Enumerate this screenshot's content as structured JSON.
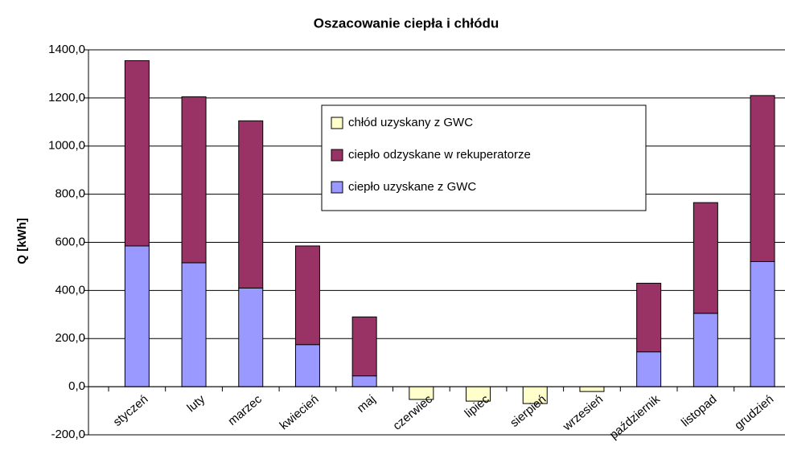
{
  "chart_data": {
    "type": "stacked_bar",
    "title": "Oszacowanie ciepła i chłódu",
    "y_label": "Q [kWh]",
    "categories": [
      "styczeń",
      "luty",
      "marzec",
      "kwiecień",
      "maj",
      "czerwiec",
      "lipiec",
      "sierpień",
      "wrzesień",
      "październik",
      "listopad",
      "grudzień"
    ],
    "series": [
      {
        "name": "chłód uzyskany z GWC",
        "color": "#ffffcc",
        "values": [
          null,
          null,
          null,
          null,
          null,
          -53,
          -60,
          -70,
          -20,
          null,
          null,
          null
        ]
      },
      {
        "name": "ciepło odzyskane w rekuperatorze",
        "color": "#993366",
        "values": [
          770,
          690,
          695,
          410,
          245,
          null,
          null,
          null,
          null,
          285,
          460,
          690
        ]
      },
      {
        "name": "ciepło uzyskane z GWC",
        "color": "#9999ff",
        "values": [
          585,
          515,
          410,
          175,
          45,
          null,
          null,
          null,
          null,
          145,
          305,
          520
        ]
      }
    ],
    "ylim": [
      -200,
      1400
    ],
    "yticks": [
      {
        "value": -200,
        "label": "-200,0"
      },
      {
        "value": 0,
        "label": "0,0"
      },
      {
        "value": 200,
        "label": "200,0"
      },
      {
        "value": 400,
        "label": "400,0"
      },
      {
        "value": 600,
        "label": "600,0"
      },
      {
        "value": 800,
        "label": "800,0"
      },
      {
        "value": 1000,
        "label": "1000,0"
      },
      {
        "value": 1200,
        "label": "1200,0"
      },
      {
        "value": 1400,
        "label": "1400,0"
      }
    ],
    "grid": true,
    "legend": "upper center"
  }
}
